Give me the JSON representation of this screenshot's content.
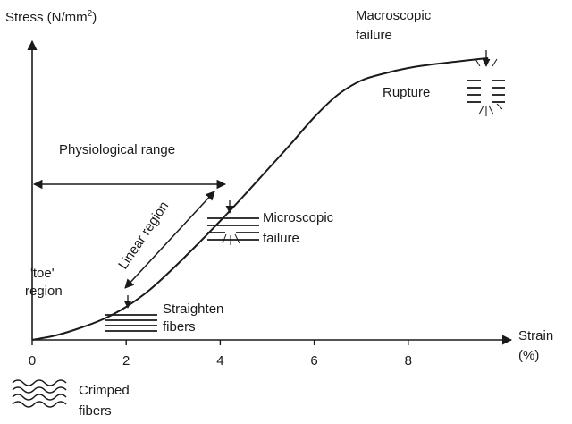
{
  "chart_data": {
    "type": "line",
    "title": "",
    "xlabel": "Strain",
    "xlabel_unit": "(%)",
    "ylabel": "Stress (N/mm",
    "ylabel_superscript": "2",
    "ylabel_close": ")",
    "xlim": [
      0,
      10
    ],
    "x_ticks": [
      0,
      2,
      4,
      6,
      8
    ],
    "series": [
      {
        "x": [
          0,
          0.5,
          1,
          1.5,
          2,
          2.5,
          3,
          3.5,
          4,
          4.5,
          5,
          5.5,
          6,
          6.5,
          7,
          7.5,
          8,
          8.5,
          9,
          9.5,
          9.7
        ],
        "y": [
          0,
          5,
          13,
          23,
          37,
          56,
          80,
          106,
          133,
          161,
          190,
          219,
          249,
          274,
          290,
          298,
          304,
          308,
          311,
          314,
          315
        ]
      }
    ],
    "annotations": {
      "macroscopic_failure": [
        "Macroscopic",
        "failure"
      ],
      "rupture": "Rupture",
      "physiological_range": "Physiological range",
      "linear_region": "Linear region",
      "microscopic_failure": [
        "Microscopic",
        "failure"
      ],
      "toe_region": [
        "'toe'",
        "region"
      ],
      "straighten_fibers": [
        "Straighten",
        "fibers"
      ],
      "crimped_fibers": [
        "Crimped",
        "fibers"
      ]
    }
  }
}
